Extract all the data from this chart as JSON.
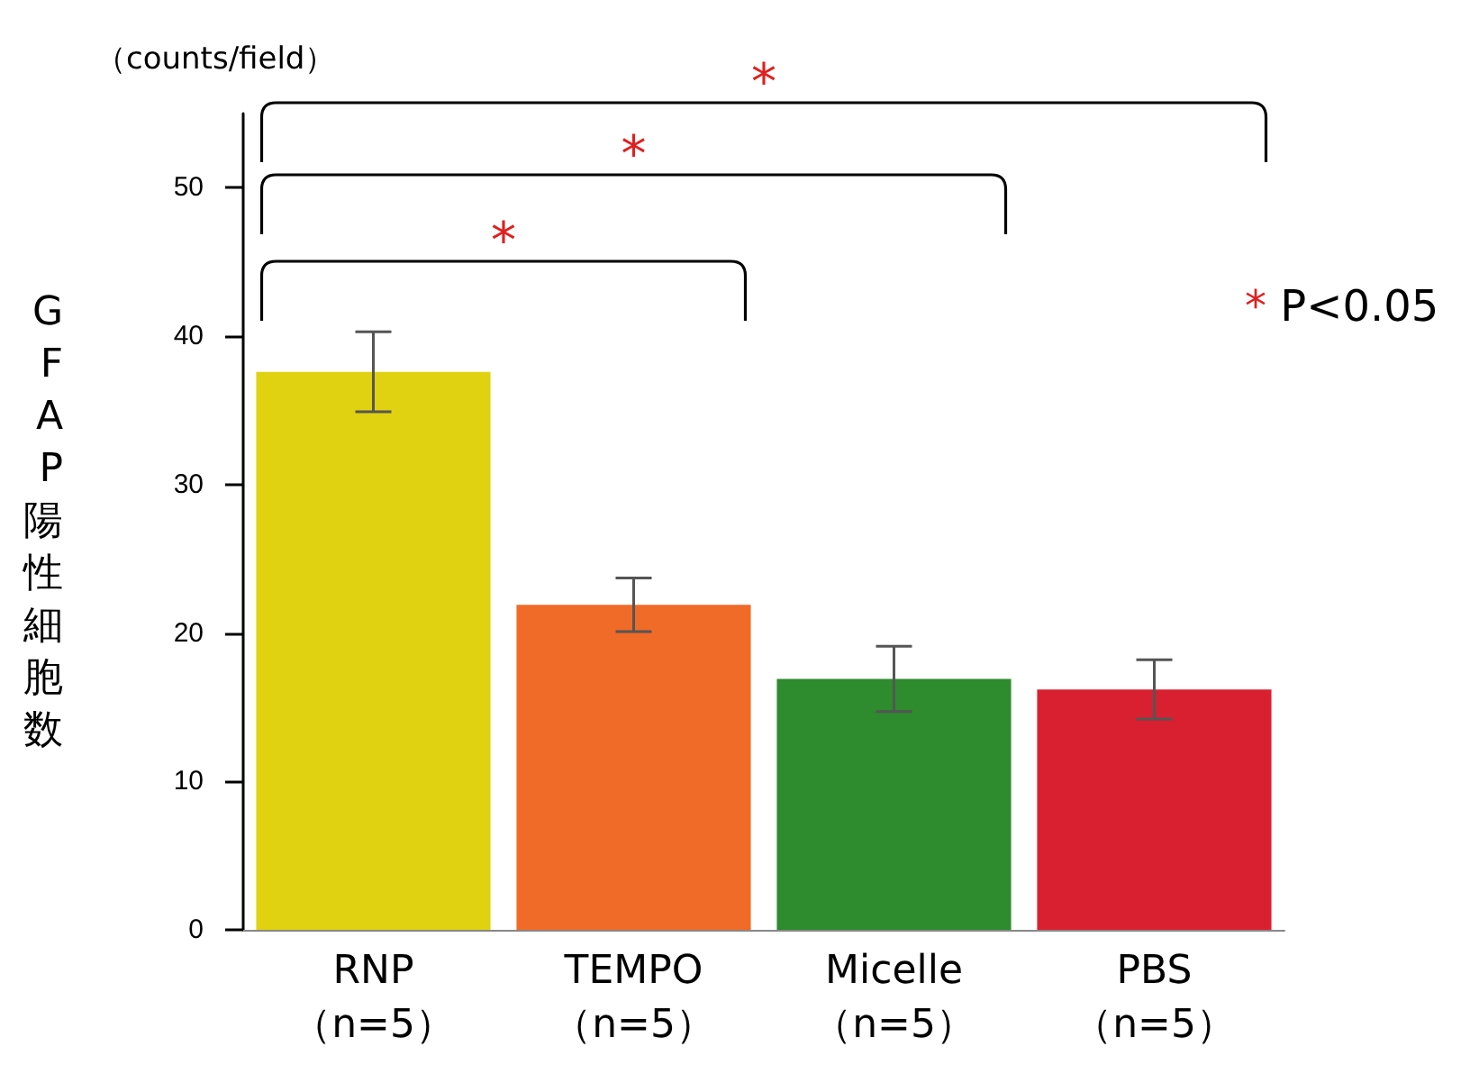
{
  "chart_data": {
    "type": "bar",
    "ylabel": "GFAP陽性細胞数",
    "categories": [
      "RNP\n（n=5）",
      "TEMPO\n（n=5）",
      "Micelle\n（n=5）",
      "PBS\n（n=5）"
    ],
    "values": [
      37.6,
      21.9,
      16.9,
      16.2
    ],
    "colors": [
      "#e0d210",
      "#f06a28",
      "#2e8b2e",
      "#d92030"
    ],
    "errors": [
      2.7,
      1.8,
      2.2,
      2.0
    ],
    "ylim": [
      0,
      55
    ],
    "yticks": [
      0,
      10,
      20,
      30,
      40,
      50
    ],
    "grid": false,
    "annotations": [
      "（counts/field）",
      "*",
      "*",
      "*",
      "* P<0.05"
    ]
  }
}
